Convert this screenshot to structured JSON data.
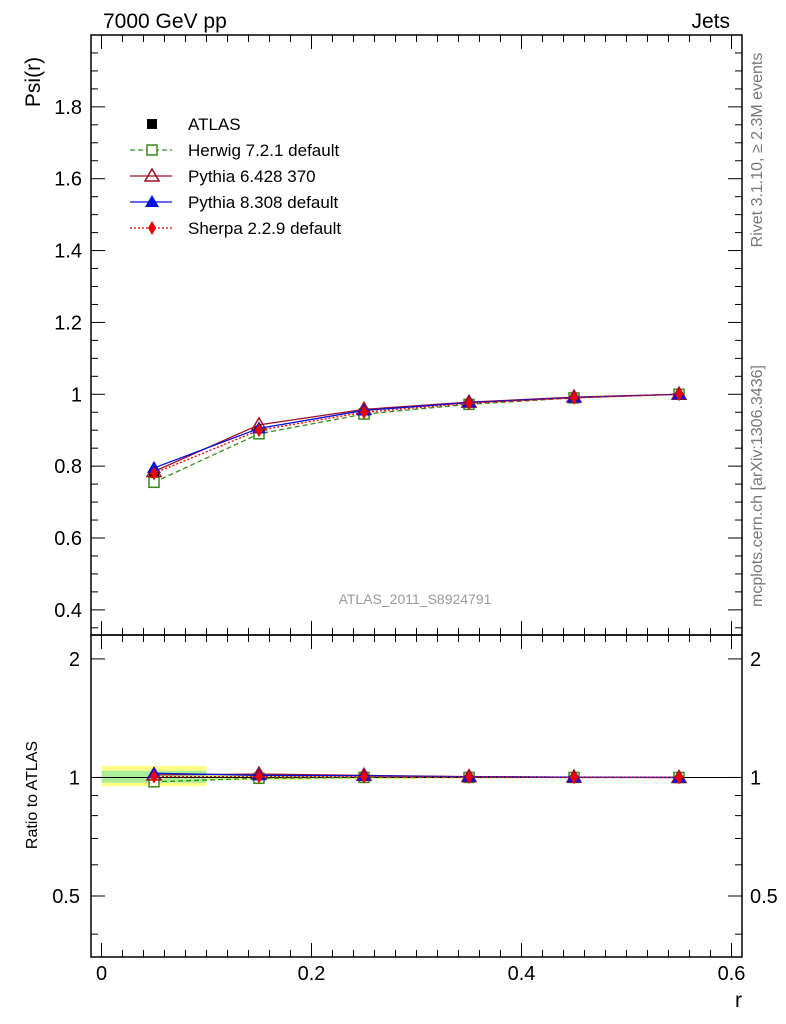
{
  "header": {
    "left": "7000 GeV pp",
    "right": "Jets"
  },
  "side_labels": {
    "rivet": "Rivet 3.1.10, ≥ 2.3M events",
    "mcplots": "mcplots.cern.ch [arXiv:1306.3436]"
  },
  "watermark": "ATLAS_2011_S8924791",
  "chart_data": [
    {
      "type": "line",
      "panel": "main",
      "ylabel": "Psi(r)",
      "xlim": [
        -0.01,
        0.61
      ],
      "ylim": [
        0.33,
        2.0
      ],
      "yticks": [
        0.4,
        0.6,
        0.8,
        1.0,
        1.2,
        1.4,
        1.6,
        1.8
      ],
      "ytick_labels": [
        "0.4",
        "0.6",
        "0.8",
        "1",
        "1.2",
        "1.4",
        "1.6",
        "1.8"
      ],
      "legend_position": "top-left",
      "x": [
        0.05,
        0.15,
        0.25,
        0.35,
        0.45,
        0.55
      ],
      "series": [
        {
          "name": "ATLAS",
          "color": "#000000",
          "marker": "filled-square",
          "line": "none",
          "values": [
            0.775,
            0.895,
            0.945,
            0.973,
            0.99,
            1.0
          ]
        },
        {
          "name": "Herwig 7.2.1 default",
          "color": "#3a8a1a",
          "marker": "open-square",
          "line": "dashed",
          "values": [
            0.755,
            0.89,
            0.945,
            0.972,
            0.99,
            1.0
          ]
        },
        {
          "name": "Pythia 6.428 370",
          "color": "#a01020",
          "marker": "open-triangle",
          "line": "solid",
          "values": [
            0.785,
            0.915,
            0.958,
            0.978,
            0.992,
            1.0
          ]
        },
        {
          "name": "Pythia 8.308 default",
          "color": "#0010dd",
          "marker": "filled-triangle",
          "line": "solid",
          "values": [
            0.795,
            0.905,
            0.955,
            0.977,
            0.991,
            1.0
          ]
        },
        {
          "name": "Sherpa 2.2.9 default",
          "color": "#ee0000",
          "marker": "filled-diamond",
          "line": "dotted",
          "values": [
            0.78,
            0.9,
            0.95,
            0.975,
            0.99,
            1.0
          ]
        }
      ]
    },
    {
      "type": "line",
      "panel": "ratio",
      "ylabel": "Ratio to ATLAS",
      "xlabel": "r",
      "xlim": [
        -0.01,
        0.61
      ],
      "ylim": [
        0.35,
        2.3
      ],
      "yticks": [
        0.5,
        1,
        2
      ],
      "ytick_labels": [
        "0.5",
        "1",
        "2"
      ],
      "xticks": [
        0,
        0.2,
        0.4,
        0.6
      ],
      "xtick_labels": [
        "0",
        "0.2",
        "0.4",
        "0.6"
      ],
      "x": [
        0.05,
        0.15,
        0.25,
        0.35,
        0.45,
        0.55
      ],
      "band": {
        "x_edges": [
          [
            0.0,
            0.1
          ],
          [
            0.1,
            0.2
          ],
          [
            0.2,
            0.3
          ],
          [
            0.3,
            0.4
          ],
          [
            0.4,
            0.5
          ],
          [
            0.5,
            0.6
          ]
        ],
        "outer": [
          [
            0.95,
            1.07
          ],
          [
            0.985,
            1.015
          ],
          [
            0.99,
            1.01
          ],
          [
            0.995,
            1.005
          ],
          [
            0.997,
            1.003
          ],
          [
            0.998,
            1.002
          ]
        ],
        "inner": [
          [
            0.97,
            1.04
          ],
          [
            0.992,
            1.008
          ],
          [
            0.995,
            1.005
          ],
          [
            0.997,
            1.003
          ],
          [
            0.998,
            1.002
          ],
          [
            0.999,
            1.001
          ]
        ],
        "outer_color": "#ffff88",
        "inner_color": "#aaee99"
      },
      "series": [
        {
          "name": "Herwig 7.2.1 default",
          "color": "#3a8a1a",
          "marker": "open-square",
          "line": "dashed",
          "values": [
            0.975,
            0.995,
            1.0,
            1.0,
            1.0,
            1.0
          ]
        },
        {
          "name": "Pythia 6.428 370",
          "color": "#a01020",
          "marker": "open-triangle",
          "line": "solid",
          "values": [
            1.015,
            1.02,
            1.012,
            1.005,
            1.002,
            1.0
          ]
        },
        {
          "name": "Pythia 8.308 default",
          "color": "#0010dd",
          "marker": "filled-triangle",
          "line": "solid",
          "values": [
            1.025,
            1.012,
            1.01,
            1.004,
            1.001,
            1.0
          ]
        },
        {
          "name": "Sherpa 2.2.9 default",
          "color": "#ee0000",
          "marker": "filled-diamond",
          "line": "dotted",
          "values": [
            1.005,
            1.005,
            1.005,
            1.002,
            1.0,
            1.0
          ]
        }
      ]
    }
  ]
}
